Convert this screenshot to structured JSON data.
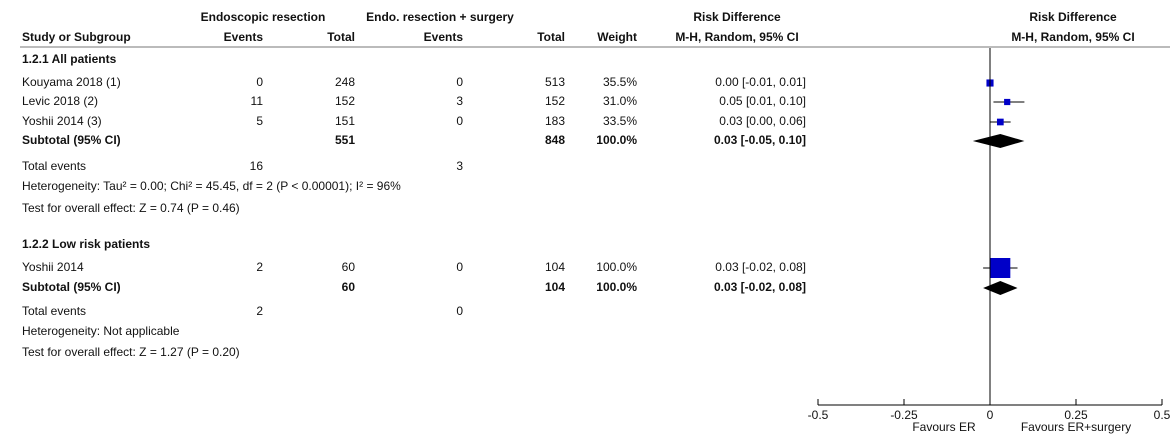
{
  "chart_data": {
    "type": "forest",
    "column_groups": [
      "Endoscopic resection",
      "Endo. resection + surgery",
      "Risk Difference",
      "Risk Difference"
    ],
    "columns": [
      "Study or Subgroup",
      "Events",
      "Total",
      "Events",
      "Total",
      "Weight",
      "M-H, Random, 95% CI",
      "M-H, Random, 95% CI"
    ],
    "color": "#0000c8",
    "subgroups": [
      {
        "title": "1.2.1 All patients",
        "studies": [
          {
            "name": "Kouyama 2018 (1)",
            "events1": 0,
            "total1": 248,
            "events2": 0,
            "total2": 513,
            "weight": 35.5,
            "weight_label": "35.5%",
            "estimate": 0.0,
            "lower": -0.01,
            "upper": 0.01,
            "ci_label": "0.00 [-0.01, 0.01]"
          },
          {
            "name": "Levic 2018 (2)",
            "events1": 11,
            "total1": 152,
            "events2": 3,
            "total2": 152,
            "weight": 31.0,
            "weight_label": "31.0%",
            "estimate": 0.05,
            "lower": 0.01,
            "upper": 0.1,
            "ci_label": "0.05 [0.01, 0.10]"
          },
          {
            "name": "Yoshii 2014 (3)",
            "events1": 5,
            "total1": 151,
            "events2": 0,
            "total2": 183,
            "weight": 33.5,
            "weight_label": "33.5%",
            "estimate": 0.03,
            "lower": 0.0,
            "upper": 0.06,
            "ci_label": "0.03 [0.00, 0.06]"
          }
        ],
        "subtotal": {
          "name": "Subtotal (95% CI)",
          "total1": 551,
          "total2": 848,
          "weight": 100,
          "weight_label": "100.0%",
          "estimate": 0.03,
          "lower": -0.05,
          "upper": 0.1,
          "ci_label": "0.03 [-0.05, 0.10]"
        },
        "total_events": {
          "name": "Total events",
          "events1": 16,
          "events2": 3
        },
        "heterogeneity": "Heterogeneity: Tau² = 0.00; Chi² = 45.45, df = 2 (P < 0.00001); I² = 96%",
        "overall_effect": "Test for overall effect: Z = 0.74 (P = 0.46)"
      },
      {
        "title": "1.2.2 Low risk patients",
        "studies": [
          {
            "name": "Yoshii 2014",
            "events1": 2,
            "total1": 60,
            "events2": 0,
            "total2": 104,
            "weight": 100,
            "weight_label": "100.0%",
            "estimate": 0.03,
            "lower": -0.02,
            "upper": 0.08,
            "ci_label": "0.03 [-0.02, 0.08]"
          }
        ],
        "subtotal": {
          "name": "Subtotal (95% CI)",
          "total1": 60,
          "total2": 104,
          "weight": 100,
          "weight_label": "100.0%",
          "estimate": 0.03,
          "lower": -0.02,
          "upper": 0.08,
          "ci_label": "0.03 [-0.02, 0.08]"
        },
        "total_events": {
          "name": "Total events",
          "events1": 2,
          "events2": 0
        },
        "heterogeneity": "Heterogeneity: Not applicable",
        "overall_effect": "Test for overall effect: Z = 1.27 (P = 0.20)"
      }
    ],
    "xlim": [
      -0.5,
      0.5
    ],
    "xticks": [
      -0.5,
      -0.25,
      0,
      0.25,
      0.5
    ],
    "favours_left": "Favours ER",
    "favours_right": "Favours ER+surgery"
  }
}
